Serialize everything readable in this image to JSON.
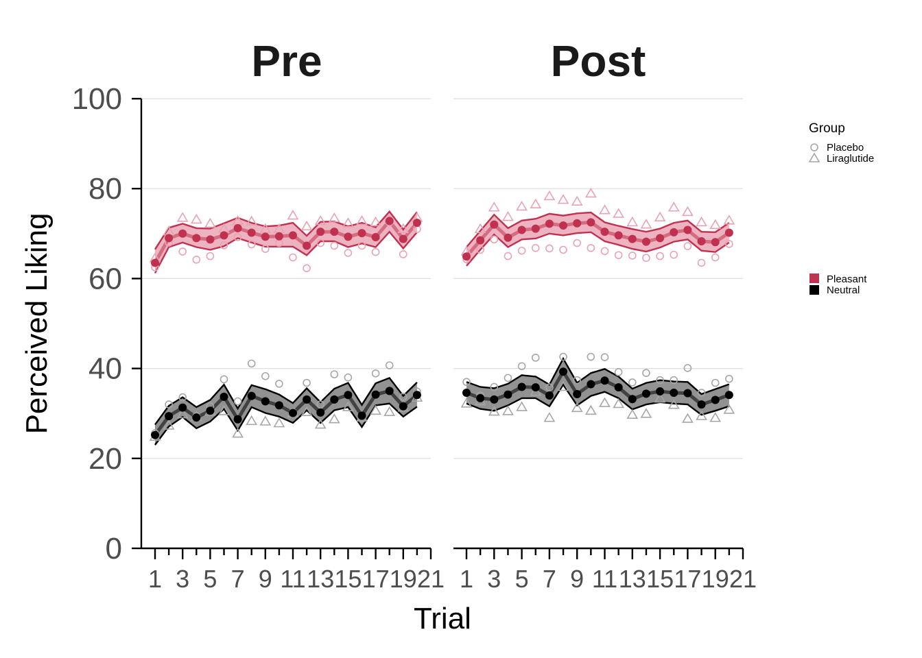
{
  "chart_data": {
    "type": "line",
    "panels": [
      "Pre",
      "Post"
    ],
    "xlabel": "Trial",
    "ylabel": "Perceived Liking",
    "ylim": [
      0,
      100
    ],
    "yticks": [
      0,
      20,
      40,
      60,
      80,
      100
    ],
    "xlim": [
      1,
      21
    ],
    "x": [
      1,
      2,
      3,
      4,
      5,
      6,
      7,
      8,
      9,
      10,
      11,
      12,
      13,
      14,
      15,
      16,
      17,
      18,
      19,
      20
    ],
    "xticks": [
      1,
      3,
      5,
      7,
      9,
      11,
      13,
      15,
      17,
      19,
      21
    ],
    "xtick_labels": [
      "1",
      "3",
      "5",
      "7",
      "9",
      "11",
      "13",
      "15",
      "17",
      "19",
      "21"
    ],
    "grid": "horizontal",
    "legend": {
      "position": "right",
      "group_title": "Group",
      "groups": [
        {
          "label": "Placebo",
          "shape": "circle"
        },
        {
          "label": "Liraglutide",
          "shape": "triangle"
        }
      ],
      "conditions": [
        {
          "label": "Pleasant",
          "color": "#c0314f"
        },
        {
          "label": "Neutral",
          "color": "#000000"
        }
      ]
    },
    "colors": {
      "pleasant": "#c0314f",
      "pleasant_fill": "#e89aab",
      "pleasant_light": "#e8a3b2",
      "neutral": "#000000",
      "neutral_fill": "#8c8c8c",
      "neutral_light": "#a6a6a6"
    },
    "series": {
      "Pre": {
        "Pleasant": {
          "mean": [
            63.5,
            69,
            70,
            69,
            68.7,
            69.6,
            71.2,
            70.2,
            69.3,
            69.4,
            69.6,
            67.3,
            70.4,
            70.4,
            69.3,
            70.1,
            69.2,
            72.8,
            68.8,
            72.4
          ],
          "upper": [
            66.5,
            71.3,
            72.2,
            71.2,
            71.1,
            72.3,
            73.5,
            72.4,
            71.6,
            71.8,
            72.4,
            69.5,
            72.6,
            72.7,
            71.6,
            72.4,
            71.4,
            74.9,
            70.9,
            74.8
          ],
          "lower": [
            61.2,
            67,
            68,
            67,
            66.4,
            67.2,
            69,
            68,
            67.1,
            67.1,
            67.1,
            65.2,
            68.3,
            68.3,
            67,
            67.8,
            67,
            70.4,
            66.7,
            70.3
          ],
          "placebo": [
            62.5,
            68,
            66,
            64.2,
            65,
            67.4,
            69.2,
            67.6,
            66.6,
            67.9,
            64.7,
            62.3,
            67.9,
            67.3,
            65.7,
            67.3,
            65.9,
            72.5,
            65.4,
            71
          ],
          "liraglutide": [
            64.5,
            70.5,
            73.5,
            73.1,
            72.2,
            71,
            72.8,
            72.7,
            71,
            71,
            74,
            71.6,
            72.8,
            73.4,
            72.3,
            72.8,
            72.5,
            73,
            71,
            73.5
          ]
        },
        "Neutral": {
          "mean": [
            25.2,
            29.4,
            31.3,
            29.1,
            30.6,
            33.7,
            28.7,
            33.9,
            32.7,
            31.8,
            30.1,
            33.1,
            30.2,
            33.1,
            34.1,
            29.5,
            34.2,
            35,
            31.6,
            34.1
          ],
          "upper": [
            27.5,
            31.7,
            33.6,
            31.4,
            33,
            36.4,
            31.1,
            36.3,
            35.4,
            34.2,
            32.3,
            35.6,
            32.5,
            35.5,
            36.8,
            31.9,
            36.7,
            37.9,
            33.9,
            36.9
          ],
          "lower": [
            23,
            27.1,
            29.2,
            26.7,
            28.2,
            31,
            26.2,
            31.4,
            30.1,
            29.3,
            27.9,
            30.7,
            27.9,
            30.7,
            31.4,
            27,
            31.8,
            32.2,
            29.3,
            31.5
          ],
          "placebo": [
            25.6,
            32,
            33.6,
            29.4,
            31.6,
            37.6,
            32.7,
            41.1,
            38.3,
            36.6,
            30.3,
            36.8,
            32,
            38.7,
            38,
            28.8,
            38.9,
            40.7,
            33.7,
            34.9
          ],
          "liraglutide": [
            24.8,
            27.3,
            29.8,
            29.2,
            30.4,
            30.5,
            25.5,
            28.3,
            28.2,
            27.8,
            30,
            30.3,
            27.5,
            28.7,
            31.4,
            29.1,
            30.6,
            30.3,
            31.3,
            33.5
          ]
        }
      },
      "Post": {
        "Pleasant": {
          "mean": [
            64.9,
            68.5,
            72,
            69.1,
            70.8,
            71.1,
            72.2,
            71.8,
            72.3,
            72.5,
            70.4,
            69.6,
            68.8,
            68.2,
            69,
            70.3,
            70.8,
            68.3,
            68.1,
            70.2
          ],
          "upper": [
            67,
            70.6,
            74.2,
            71.2,
            72.9,
            73.3,
            74.4,
            74,
            74.5,
            74.7,
            72.5,
            71.7,
            71,
            70.4,
            71.1,
            72.4,
            72.9,
            70.4,
            70.3,
            72.4
          ],
          "lower": [
            62.8,
            66.4,
            69.8,
            67,
            68.7,
            68.9,
            70,
            69.6,
            70.1,
            70.3,
            68.3,
            67.5,
            66.6,
            66,
            66.9,
            68.2,
            68.7,
            66.2,
            65.9,
            68
          ],
          "placebo": [
            64.3,
            66.4,
            68.7,
            65,
            66.2,
            66.8,
            66.7,
            66.4,
            67.9,
            66.8,
            66.1,
            65.2,
            65.1,
            64.6,
            65,
            65.3,
            67.2,
            63.5,
            64.7,
            67.7
          ],
          "liraglutide": [
            66,
            71,
            75.8,
            73.7,
            76,
            76.5,
            78.3,
            77.5,
            77.1,
            78.9,
            75.2,
            74.4,
            72.5,
            72,
            73.6,
            75.8,
            74.8,
            72.5,
            71.9,
            72.9
          ]
        },
        "Neutral": {
          "mean": [
            34.6,
            33.4,
            33.1,
            34.2,
            35.9,
            35.8,
            34,
            39.3,
            34.3,
            36.5,
            37.3,
            35.8,
            33.2,
            34.4,
            34.9,
            34.6,
            34.5,
            32,
            33,
            34.1
          ],
          "upper": [
            37,
            35.9,
            35.6,
            36.6,
            38.5,
            38.2,
            36.4,
            42.2,
            36.8,
            39,
            39.9,
            38.2,
            35.5,
            36.8,
            37.4,
            37.1,
            37,
            34.3,
            35.4,
            36.5
          ],
          "lower": [
            32.2,
            31,
            30.6,
            31.8,
            33.4,
            33.4,
            31.6,
            36.4,
            31.8,
            33.9,
            34.8,
            33.4,
            30.9,
            32,
            32.5,
            32.2,
            32,
            29.7,
            30.6,
            31.6
          ],
          "placebo": [
            37,
            34,
            35.9,
            37.9,
            40.5,
            42.4,
            35.8,
            42.6,
            37.4,
            42.6,
            42.5,
            39.2,
            36.9,
            39,
            37.4,
            37.4,
            40.1,
            34.6,
            36.8,
            37.7
          ],
          "liraglutide": [
            32.2,
            32.7,
            30.4,
            30.5,
            31.4,
            34.8,
            29,
            35.9,
            31.2,
            30.6,
            32.3,
            32.1,
            29.7,
            29.9,
            33.3,
            31.9,
            28.8,
            29.4,
            29,
            30.8
          ]
        }
      }
    }
  }
}
